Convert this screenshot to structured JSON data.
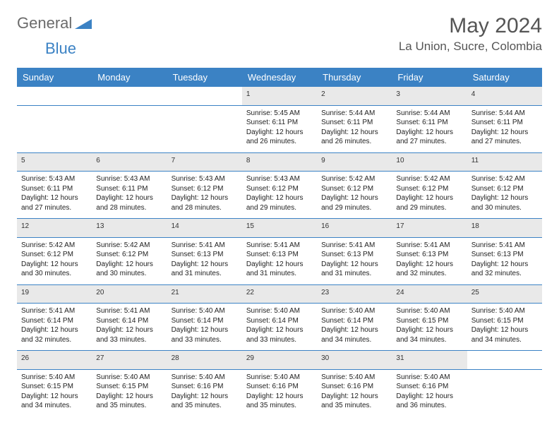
{
  "logo": {
    "textGray": "General",
    "textBlue": "Blue"
  },
  "title": "May 2024",
  "location": "La Union, Sucre, Colombia",
  "colors": {
    "headerBg": "#3b82c4",
    "headerText": "#ffffff",
    "dayNumBg": "#e9e9e9",
    "border": "#3b82c4",
    "logoGray": "#6b6b6b",
    "logoBlue": "#3b82c4"
  },
  "dayHeaders": [
    "Sunday",
    "Monday",
    "Tuesday",
    "Wednesday",
    "Thursday",
    "Friday",
    "Saturday"
  ],
  "weeks": [
    [
      null,
      null,
      null,
      {
        "n": "1",
        "sr": "5:45 AM",
        "ss": "6:11 PM",
        "dl": "12 hours and 26 minutes."
      },
      {
        "n": "2",
        "sr": "5:44 AM",
        "ss": "6:11 PM",
        "dl": "12 hours and 26 minutes."
      },
      {
        "n": "3",
        "sr": "5:44 AM",
        "ss": "6:11 PM",
        "dl": "12 hours and 27 minutes."
      },
      {
        "n": "4",
        "sr": "5:44 AM",
        "ss": "6:11 PM",
        "dl": "12 hours and 27 minutes."
      }
    ],
    [
      {
        "n": "5",
        "sr": "5:43 AM",
        "ss": "6:11 PM",
        "dl": "12 hours and 27 minutes."
      },
      {
        "n": "6",
        "sr": "5:43 AM",
        "ss": "6:11 PM",
        "dl": "12 hours and 28 minutes."
      },
      {
        "n": "7",
        "sr": "5:43 AM",
        "ss": "6:12 PM",
        "dl": "12 hours and 28 minutes."
      },
      {
        "n": "8",
        "sr": "5:43 AM",
        "ss": "6:12 PM",
        "dl": "12 hours and 29 minutes."
      },
      {
        "n": "9",
        "sr": "5:42 AM",
        "ss": "6:12 PM",
        "dl": "12 hours and 29 minutes."
      },
      {
        "n": "10",
        "sr": "5:42 AM",
        "ss": "6:12 PM",
        "dl": "12 hours and 29 minutes."
      },
      {
        "n": "11",
        "sr": "5:42 AM",
        "ss": "6:12 PM",
        "dl": "12 hours and 30 minutes."
      }
    ],
    [
      {
        "n": "12",
        "sr": "5:42 AM",
        "ss": "6:12 PM",
        "dl": "12 hours and 30 minutes."
      },
      {
        "n": "13",
        "sr": "5:42 AM",
        "ss": "6:12 PM",
        "dl": "12 hours and 30 minutes."
      },
      {
        "n": "14",
        "sr": "5:41 AM",
        "ss": "6:13 PM",
        "dl": "12 hours and 31 minutes."
      },
      {
        "n": "15",
        "sr": "5:41 AM",
        "ss": "6:13 PM",
        "dl": "12 hours and 31 minutes."
      },
      {
        "n": "16",
        "sr": "5:41 AM",
        "ss": "6:13 PM",
        "dl": "12 hours and 31 minutes."
      },
      {
        "n": "17",
        "sr": "5:41 AM",
        "ss": "6:13 PM",
        "dl": "12 hours and 32 minutes."
      },
      {
        "n": "18",
        "sr": "5:41 AM",
        "ss": "6:13 PM",
        "dl": "12 hours and 32 minutes."
      }
    ],
    [
      {
        "n": "19",
        "sr": "5:41 AM",
        "ss": "6:14 PM",
        "dl": "12 hours and 32 minutes."
      },
      {
        "n": "20",
        "sr": "5:41 AM",
        "ss": "6:14 PM",
        "dl": "12 hours and 33 minutes."
      },
      {
        "n": "21",
        "sr": "5:40 AM",
        "ss": "6:14 PM",
        "dl": "12 hours and 33 minutes."
      },
      {
        "n": "22",
        "sr": "5:40 AM",
        "ss": "6:14 PM",
        "dl": "12 hours and 33 minutes."
      },
      {
        "n": "23",
        "sr": "5:40 AM",
        "ss": "6:14 PM",
        "dl": "12 hours and 34 minutes."
      },
      {
        "n": "24",
        "sr": "5:40 AM",
        "ss": "6:15 PM",
        "dl": "12 hours and 34 minutes."
      },
      {
        "n": "25",
        "sr": "5:40 AM",
        "ss": "6:15 PM",
        "dl": "12 hours and 34 minutes."
      }
    ],
    [
      {
        "n": "26",
        "sr": "5:40 AM",
        "ss": "6:15 PM",
        "dl": "12 hours and 34 minutes."
      },
      {
        "n": "27",
        "sr": "5:40 AM",
        "ss": "6:15 PM",
        "dl": "12 hours and 35 minutes."
      },
      {
        "n": "28",
        "sr": "5:40 AM",
        "ss": "6:16 PM",
        "dl": "12 hours and 35 minutes."
      },
      {
        "n": "29",
        "sr": "5:40 AM",
        "ss": "6:16 PM",
        "dl": "12 hours and 35 minutes."
      },
      {
        "n": "30",
        "sr": "5:40 AM",
        "ss": "6:16 PM",
        "dl": "12 hours and 35 minutes."
      },
      {
        "n": "31",
        "sr": "5:40 AM",
        "ss": "6:16 PM",
        "dl": "12 hours and 36 minutes."
      },
      null
    ]
  ],
  "labels": {
    "sunrise": "Sunrise:",
    "sunset": "Sunset:",
    "daylight": "Daylight:"
  }
}
